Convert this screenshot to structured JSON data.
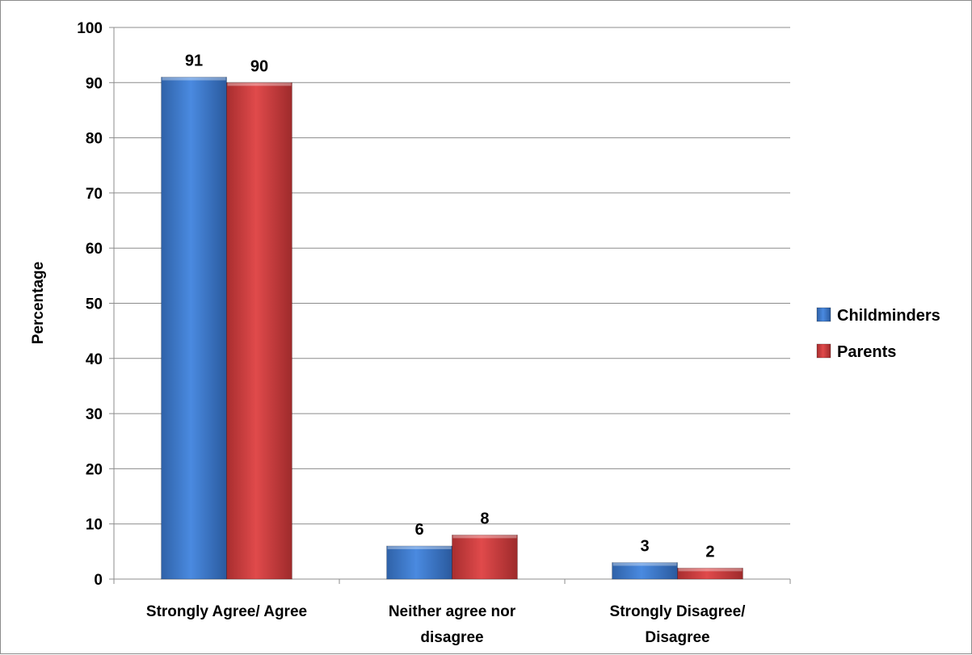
{
  "chart_data": {
    "type": "bar",
    "categories": [
      [
        "Strongly Agree/ Agree"
      ],
      [
        "Neither agree nor",
        "disagree"
      ],
      [
        "Strongly Disagree/",
        "Disagree"
      ]
    ],
    "series": [
      {
        "name": "Childminders",
        "values": [
          91,
          6,
          3
        ],
        "color": "#3a78c8"
      },
      {
        "name": "Parents",
        "values": [
          90,
          8,
          2
        ],
        "color": "#c8393a"
      }
    ],
    "ylabel": "Percentage",
    "xlabel": "",
    "ylim": [
      0,
      100
    ],
    "yticks": [
      0,
      10,
      20,
      30,
      40,
      50,
      60,
      70,
      80,
      90,
      100
    ],
    "grid": true,
    "legend_position": "right"
  }
}
